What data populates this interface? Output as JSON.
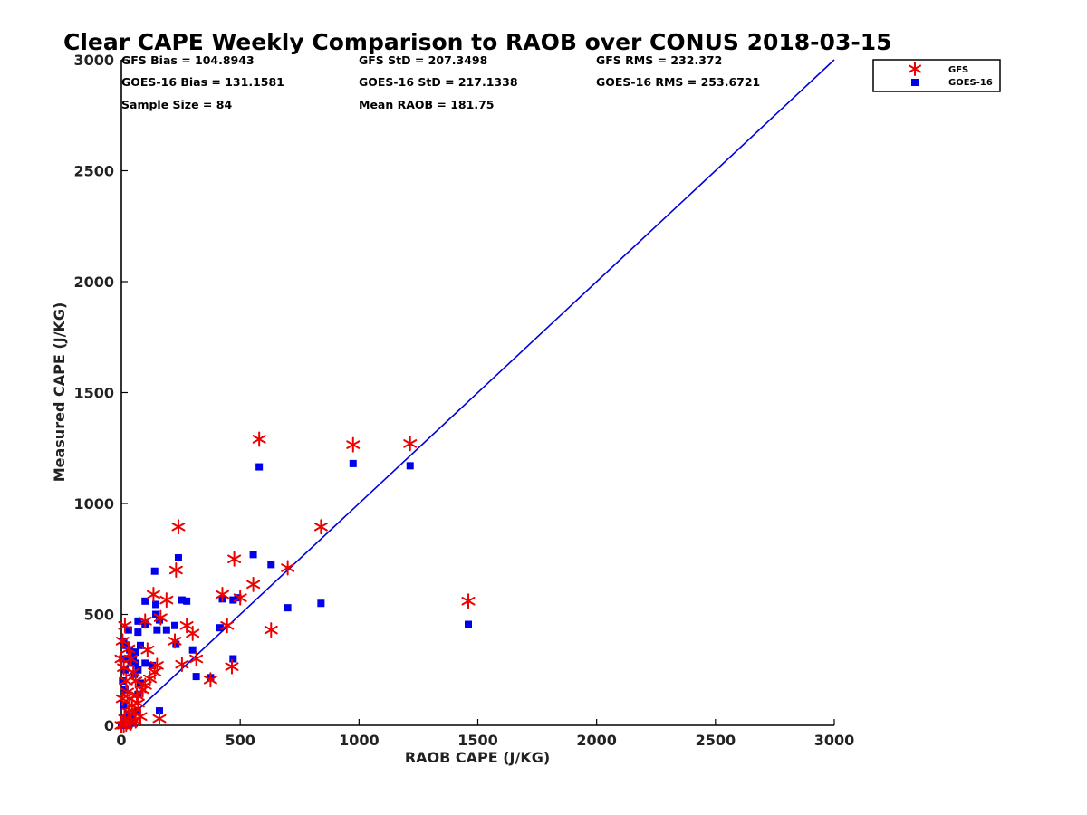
{
  "chart_data": {
    "type": "scatter",
    "title": "Clear CAPE Weekly Comparison to RAOB over CONUS 2018-03-15",
    "xlabel": "RAOB CAPE (J/KG)",
    "ylabel": "Measured CAPE (J/KG)",
    "xlim": [
      0,
      3000
    ],
    "ylim": [
      0,
      3000
    ],
    "xticks": [
      0,
      500,
      1000,
      1500,
      2000,
      2500,
      3000
    ],
    "yticks": [
      0,
      500,
      1000,
      1500,
      2000,
      2500,
      3000
    ],
    "grid": false,
    "legend_position": "top-right",
    "stats": [
      [
        "GFS Bias = 104.8943",
        "GFS StD = 207.3498",
        "GFS RMS = 232.372"
      ],
      [
        "GOES-16 Bias = 131.1581",
        "GOES-16 StD = 217.1338",
        "GOES-16 RMS = 253.6721"
      ],
      [
        "Sample Size = 84",
        "Mean RAOB = 181.75"
      ]
    ],
    "reference_line": {
      "name": "1:1 line",
      "color": "#0000dd",
      "x": [
        0,
        3000
      ],
      "y": [
        0,
        3000
      ]
    },
    "series": [
      {
        "name": "GFS",
        "marker": "asterisk",
        "color": "#ee0000",
        "points": [
          [
            580,
            1290
          ],
          [
            975,
            1265
          ],
          [
            1215,
            1270
          ],
          [
            1460,
            560
          ],
          [
            840,
            895
          ],
          [
            240,
            895
          ],
          [
            230,
            700
          ],
          [
            475,
            750
          ],
          [
            700,
            710
          ],
          [
            555,
            635
          ],
          [
            630,
            430
          ],
          [
            425,
            590
          ],
          [
            445,
            450
          ],
          [
            500,
            575
          ],
          [
            275,
            450
          ],
          [
            300,
            415
          ],
          [
            255,
            275
          ],
          [
            315,
            300
          ],
          [
            375,
            205
          ],
          [
            465,
            265
          ],
          [
            225,
            380
          ],
          [
            190,
            565
          ],
          [
            135,
            590
          ],
          [
            165,
            485
          ],
          [
            100,
            470
          ],
          [
            110,
            340
          ],
          [
            150,
            270
          ],
          [
            140,
            240
          ],
          [
            90,
            160
          ],
          [
            100,
            180
          ],
          [
            60,
            200
          ],
          [
            50,
            240
          ],
          [
            40,
            300
          ],
          [
            30,
            345
          ],
          [
            15,
            450
          ],
          [
            5,
            380
          ],
          [
            0,
            300
          ],
          [
            10,
            260
          ],
          [
            20,
            200
          ],
          [
            25,
            150
          ],
          [
            35,
            120
          ],
          [
            45,
            90
          ],
          [
            55,
            60
          ],
          [
            70,
            100
          ],
          [
            80,
            40
          ],
          [
            60,
            20
          ],
          [
            40,
            10
          ],
          [
            20,
            5
          ],
          [
            10,
            0
          ],
          [
            0,
            0
          ],
          [
            30,
            60
          ],
          [
            160,
            30
          ],
          [
            5,
            120
          ],
          [
            15,
            30
          ],
          [
            65,
            135
          ],
          [
            120,
            210
          ]
        ]
      },
      {
        "name": "GOES-16",
        "marker": "square",
        "color": "#0000ee",
        "points": [
          [
            580,
            1165
          ],
          [
            975,
            1180
          ],
          [
            1215,
            1170
          ],
          [
            1460,
            455
          ],
          [
            840,
            550
          ],
          [
            240,
            755
          ],
          [
            555,
            770
          ],
          [
            630,
            725
          ],
          [
            700,
            530
          ],
          [
            425,
            570
          ],
          [
            470,
            565
          ],
          [
            490,
            575
          ],
          [
            255,
            565
          ],
          [
            275,
            560
          ],
          [
            415,
            440
          ],
          [
            470,
            300
          ],
          [
            375,
            215
          ],
          [
            315,
            220
          ],
          [
            300,
            340
          ],
          [
            230,
            365
          ],
          [
            225,
            450
          ],
          [
            190,
            430
          ],
          [
            150,
            430
          ],
          [
            140,
            695
          ],
          [
            145,
            545
          ],
          [
            145,
            500
          ],
          [
            160,
            475
          ],
          [
            100,
            560
          ],
          [
            100,
            455
          ],
          [
            70,
            470
          ],
          [
            70,
            420
          ],
          [
            30,
            430
          ],
          [
            80,
            360
          ],
          [
            60,
            330
          ],
          [
            50,
            310
          ],
          [
            20,
            360
          ],
          [
            10,
            380
          ],
          [
            5,
            300
          ],
          [
            15,
            250
          ],
          [
            25,
            300
          ],
          [
            40,
            280
          ],
          [
            60,
            280
          ],
          [
            70,
            250
          ],
          [
            100,
            280
          ],
          [
            130,
            270
          ],
          [
            80,
            190
          ],
          [
            70,
            140
          ],
          [
            60,
            60
          ],
          [
            40,
            30
          ],
          [
            20,
            10
          ],
          [
            10,
            90
          ],
          [
            0,
            0
          ],
          [
            30,
            0
          ],
          [
            50,
            10
          ],
          [
            160,
            65
          ],
          [
            5,
            200
          ],
          [
            15,
            160
          ],
          [
            35,
            340
          ],
          [
            55,
            230
          ],
          [
            45,
            20
          ],
          [
            25,
            50
          ],
          [
            10,
            30
          ]
        ]
      }
    ]
  }
}
